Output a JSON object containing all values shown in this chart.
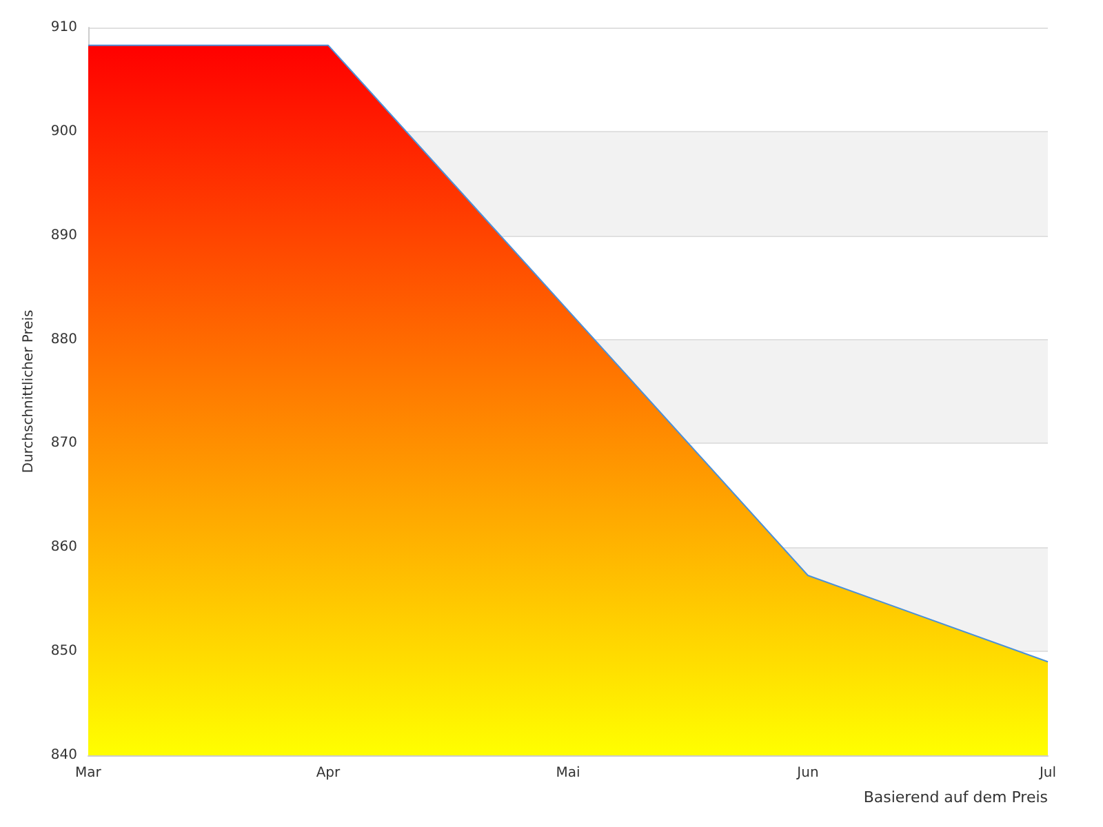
{
  "chart_data": {
    "type": "area",
    "ylabel": "Durchschnittlicher Preis",
    "categories": [
      "Mar",
      "Apr",
      "Mai",
      "Jun",
      "Jul"
    ],
    "series": [
      {
        "color": "#4a90d9",
        "values": [
          908.3,
          908.3,
          882.8,
          857.3,
          849.0
        ]
      }
    ],
    "ylim": [
      840,
      910
    ],
    "yticks": [
      840,
      850,
      860,
      870,
      880,
      890,
      900,
      910
    ],
    "grid": "y",
    "marker": "none",
    "annotations": [
      "Basierend auf dem Preis"
    ]
  }
}
